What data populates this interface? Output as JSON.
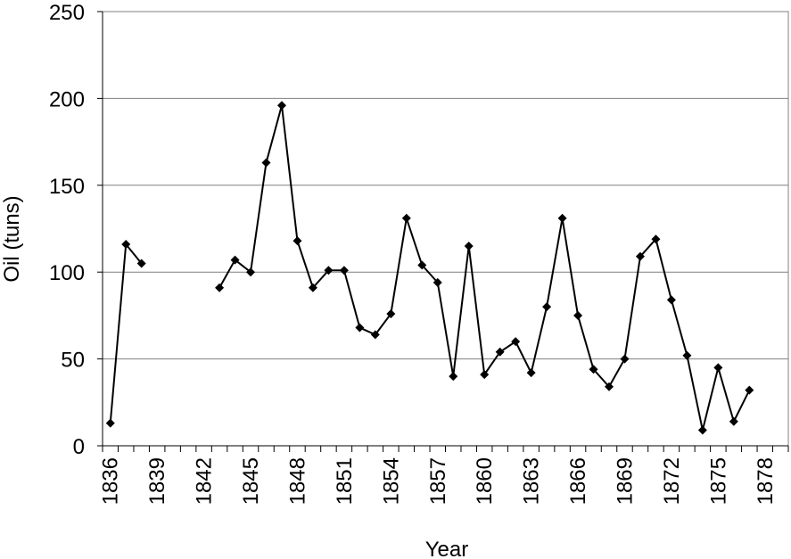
{
  "chart_data": {
    "type": "line",
    "title": "",
    "xlabel": "Year",
    "ylabel": "Oil (tuns)",
    "xlim": [
      1836,
      1880
    ],
    "ylim": [
      0,
      250
    ],
    "y_ticks": [
      0,
      50,
      100,
      150,
      200,
      250
    ],
    "x_tick_labels": [
      1836,
      1839,
      1842,
      1845,
      1848,
      1851,
      1854,
      1857,
      1860,
      1863,
      1866,
      1869,
      1872,
      1875,
      1878
    ],
    "grid": "horizontal",
    "marker": "diamond",
    "line_color": "#000000",
    "series": [
      {
        "values": [
          {
            "x": 1836,
            "y": 13
          },
          {
            "x": 1837,
            "y": 116
          },
          {
            "x": 1838,
            "y": 105
          },
          {
            "x": 1839,
            "y": null
          },
          {
            "x": 1840,
            "y": null
          },
          {
            "x": 1841,
            "y": null
          },
          {
            "x": 1842,
            "y": null
          },
          {
            "x": 1843,
            "y": 91
          },
          {
            "x": 1844,
            "y": 107
          },
          {
            "x": 1845,
            "y": 100
          },
          {
            "x": 1846,
            "y": 163
          },
          {
            "x": 1847,
            "y": 196
          },
          {
            "x": 1848,
            "y": 118
          },
          {
            "x": 1849,
            "y": 91
          },
          {
            "x": 1850,
            "y": 101
          },
          {
            "x": 1851,
            "y": 101
          },
          {
            "x": 1852,
            "y": 68
          },
          {
            "x": 1853,
            "y": 64
          },
          {
            "x": 1854,
            "y": 76
          },
          {
            "x": 1855,
            "y": 131
          },
          {
            "x": 1856,
            "y": 104
          },
          {
            "x": 1857,
            "y": 94
          },
          {
            "x": 1858,
            "y": 40
          },
          {
            "x": 1859,
            "y": 115
          },
          {
            "x": 1860,
            "y": 41
          },
          {
            "x": 1861,
            "y": 54
          },
          {
            "x": 1862,
            "y": 60
          },
          {
            "x": 1863,
            "y": 42
          },
          {
            "x": 1864,
            "y": 80
          },
          {
            "x": 1865,
            "y": 131
          },
          {
            "x": 1866,
            "y": 75
          },
          {
            "x": 1867,
            "y": 44
          },
          {
            "x": 1868,
            "y": 34
          },
          {
            "x": 1869,
            "y": 50
          },
          {
            "x": 1870,
            "y": 109
          },
          {
            "x": 1871,
            "y": 119
          },
          {
            "x": 1872,
            "y": 84
          },
          {
            "x": 1873,
            "y": 52
          },
          {
            "x": 1874,
            "y": 9
          },
          {
            "x": 1875,
            "y": 45
          },
          {
            "x": 1876,
            "y": 14
          },
          {
            "x": 1877,
            "y": 32
          }
        ]
      }
    ]
  }
}
